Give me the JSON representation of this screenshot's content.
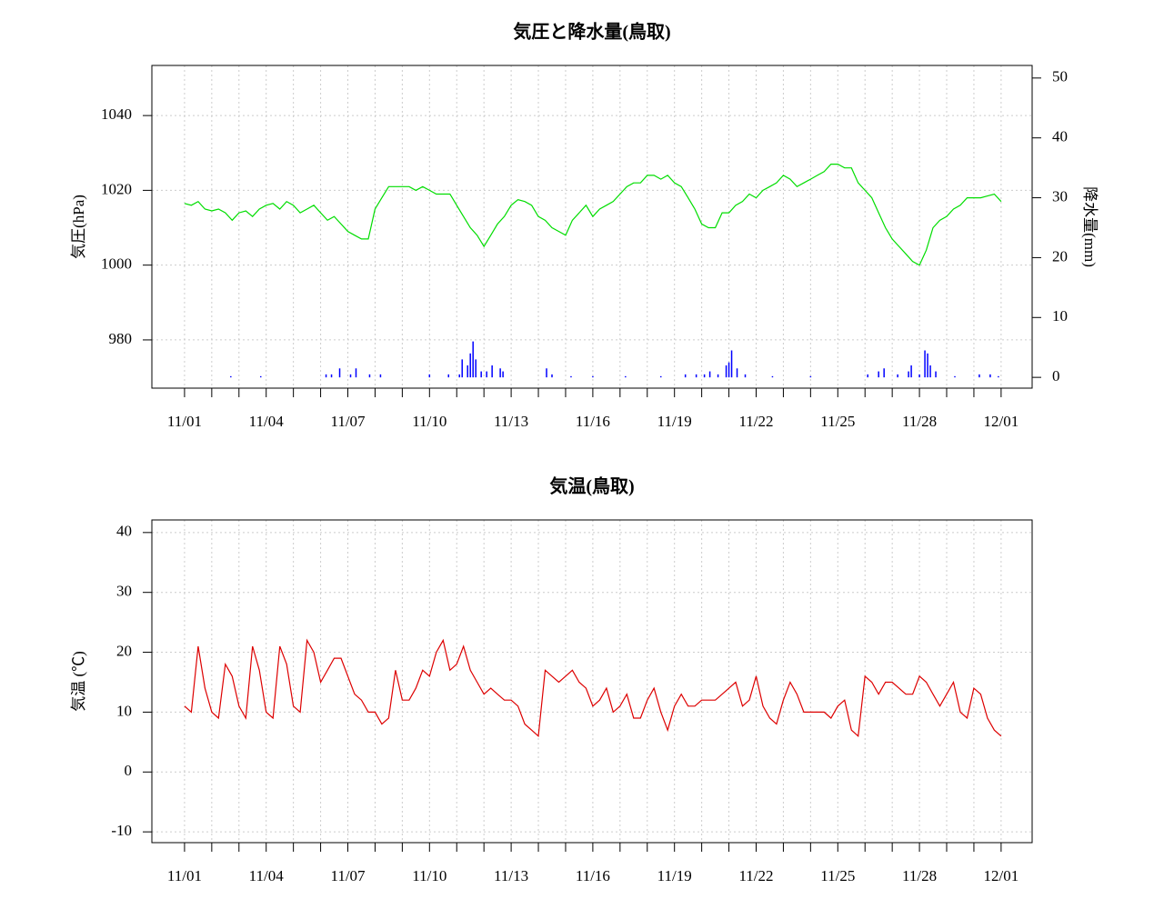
{
  "chart_data": [
    {
      "type": "line",
      "title": "気圧と降水量(鳥取)",
      "ylabel": "気圧(hPa)",
      "y2label": "降水量(mm)",
      "xlim": [
        -1.2,
        31.14
      ],
      "ylim": [
        967.1,
        1053.4
      ],
      "y2lim": [
        -1.8,
        52.1
      ],
      "xticks": [
        {
          "value": 0,
          "label": "11/01"
        },
        {
          "value": 3,
          "label": "11/04"
        },
        {
          "value": 6,
          "label": "11/07"
        },
        {
          "value": 9,
          "label": "11/10"
        },
        {
          "value": 12,
          "label": "11/13"
        },
        {
          "value": 15,
          "label": "11/16"
        },
        {
          "value": 18,
          "label": "11/19"
        },
        {
          "value": 21,
          "label": "11/22"
        },
        {
          "value": 24,
          "label": "11/25"
        },
        {
          "value": 27,
          "label": "11/28"
        },
        {
          "value": 30,
          "label": "12/01"
        }
      ],
      "yticks": [
        980,
        1000,
        1020,
        1040
      ],
      "y2ticks": [
        0,
        10,
        20,
        30,
        40,
        50
      ],
      "grid": true,
      "series": [
        {
          "type": "line",
          "color": "#00dd00",
          "x": [
            0,
            0.25,
            0.5,
            0.75,
            1,
            1.25,
            1.5,
            1.75,
            2,
            2.25,
            2.5,
            2.75,
            3,
            3.25,
            3.5,
            3.75,
            4,
            4.25,
            4.5,
            4.75,
            5,
            5.25,
            5.5,
            5.75,
            6,
            6.25,
            6.5,
            6.75,
            7,
            7.25,
            7.5,
            7.75,
            8,
            8.25,
            8.5,
            8.75,
            9,
            9.25,
            9.5,
            9.75,
            10,
            10.25,
            10.5,
            10.75,
            11,
            11.25,
            11.5,
            11.75,
            12,
            12.25,
            12.5,
            12.75,
            13,
            13.25,
            13.5,
            13.75,
            14,
            14.25,
            14.5,
            14.75,
            15,
            15.25,
            15.5,
            15.75,
            16,
            16.25,
            16.5,
            16.75,
            17,
            17.25,
            17.5,
            17.75,
            18,
            18.25,
            18.5,
            18.75,
            19,
            19.25,
            19.5,
            19.75,
            20,
            20.25,
            20.5,
            20.75,
            21,
            21.25,
            21.5,
            21.75,
            22,
            22.25,
            22.5,
            22.75,
            23,
            23.25,
            23.5,
            23.75,
            24,
            24.25,
            24.5,
            24.75,
            25,
            25.25,
            25.5,
            25.75,
            26,
            26.25,
            26.5,
            26.75,
            27,
            27.25,
            27.5,
            27.75,
            28,
            28.25,
            28.5,
            28.75,
            29,
            29.25,
            29.5,
            29.75,
            30
          ],
          "values": [
            1016.5,
            1016,
            1017,
            1015,
            1014.5,
            1015,
            1014,
            1012,
            1014,
            1014.5,
            1013,
            1015,
            1016,
            1016.5,
            1015,
            1017,
            1016,
            1014,
            1015,
            1016,
            1014,
            1012,
            1013,
            1011,
            1009,
            1008,
            1007,
            1007,
            1015,
            1018,
            1021,
            1021,
            1021,
            1021,
            1020,
            1021,
            1020,
            1019,
            1019,
            1019,
            1016,
            1013,
            1010,
            1008,
            1005,
            1008,
            1011,
            1013,
            1016,
            1017.5,
            1017,
            1016,
            1013,
            1012,
            1010,
            1009,
            1008,
            1012,
            1014,
            1016,
            1013,
            1015,
            1016,
            1017,
            1019,
            1021,
            1022,
            1022,
            1024,
            1024,
            1023,
            1024,
            1022,
            1021,
            1018,
            1015,
            1011,
            1010,
            1010,
            1014,
            1014,
            1016,
            1017,
            1019,
            1018,
            1020,
            1021,
            1022,
            1024,
            1023,
            1021,
            1022,
            1023,
            1024,
            1025,
            1027,
            1027,
            1026,
            1026,
            1022,
            1020,
            1018,
            1014,
            1010,
            1007,
            1005,
            1003,
            1001,
            1000,
            1004,
            1010,
            1012,
            1013,
            1015,
            1016,
            1018,
            1018,
            1018,
            1018.5,
            1019,
            1017
          ]
        },
        {
          "type": "bar",
          "axis": "y2",
          "color": "#0000ff",
          "x": [
            1.7,
            2.8,
            5.2,
            5.4,
            5.7,
            6.1,
            6.3,
            6.8,
            7.2,
            9.0,
            9.7,
            10.1,
            10.2,
            10.4,
            10.5,
            10.6,
            10.7,
            10.9,
            11.1,
            11.3,
            11.6,
            11.7,
            13.3,
            13.5,
            14.2,
            15.0,
            16.2,
            17.5,
            18.4,
            18.8,
            19.1,
            19.3,
            19.6,
            19.9,
            20.0,
            20.1,
            20.3,
            20.6,
            21.6,
            23.0,
            25.1,
            25.5,
            25.7,
            26.2,
            26.6,
            26.7,
            27.0,
            27.2,
            27.3,
            27.4,
            27.6,
            28.3,
            29.2,
            29.6,
            29.9
          ],
          "values": [
            0.2,
            0.2,
            0.5,
            0.5,
            1.5,
            0.5,
            1.5,
            0.5,
            0.5,
            0.5,
            0.5,
            0.5,
            3,
            2,
            4,
            6,
            3,
            1,
            1,
            2,
            1.5,
            1,
            1.5,
            0.5,
            0.2,
            0.2,
            0.2,
            0.2,
            0.5,
            0.5,
            0.5,
            1,
            0.5,
            2,
            2.5,
            4.5,
            1.5,
            0.5,
            0.2,
            0.2,
            0.5,
            1,
            1.5,
            0.5,
            1,
            2,
            0.5,
            4.5,
            4,
            2,
            1,
            0.2,
            0.5,
            0.5,
            0.2
          ]
        }
      ]
    },
    {
      "type": "line",
      "title": "気温(鳥取)",
      "ylabel": "気温 (℃)",
      "xlim": [
        -1.2,
        31.14
      ],
      "ylim": [
        -11.8,
        42.1
      ],
      "xticks": [
        {
          "value": 0,
          "label": "11/01"
        },
        {
          "value": 3,
          "label": "11/04"
        },
        {
          "value": 6,
          "label": "11/07"
        },
        {
          "value": 9,
          "label": "11/10"
        },
        {
          "value": 12,
          "label": "11/13"
        },
        {
          "value": 15,
          "label": "11/16"
        },
        {
          "value": 18,
          "label": "11/19"
        },
        {
          "value": 21,
          "label": "11/22"
        },
        {
          "value": 24,
          "label": "11/25"
        },
        {
          "value": 27,
          "label": "11/28"
        },
        {
          "value": 30,
          "label": "12/01"
        }
      ],
      "yticks": [
        -10,
        0,
        10,
        20,
        30,
        40
      ],
      "grid": true,
      "series": [
        {
          "type": "line",
          "color": "#dd0000",
          "x": [
            0,
            0.25,
            0.5,
            0.75,
            1,
            1.25,
            1.5,
            1.75,
            2,
            2.25,
            2.5,
            2.75,
            3,
            3.25,
            3.5,
            3.75,
            4,
            4.25,
            4.5,
            4.75,
            5,
            5.25,
            5.5,
            5.75,
            6,
            6.25,
            6.5,
            6.75,
            7,
            7.25,
            7.5,
            7.75,
            8,
            8.25,
            8.5,
            8.75,
            9,
            9.25,
            9.5,
            9.75,
            10,
            10.25,
            10.5,
            10.75,
            11,
            11.25,
            11.5,
            11.75,
            12,
            12.25,
            12.5,
            12.75,
            13,
            13.25,
            13.5,
            13.75,
            14,
            14.25,
            14.5,
            14.75,
            15,
            15.25,
            15.5,
            15.75,
            16,
            16.25,
            16.5,
            16.75,
            17,
            17.25,
            17.5,
            17.75,
            18,
            18.25,
            18.5,
            18.75,
            19,
            19.25,
            19.5,
            19.75,
            20,
            20.25,
            20.5,
            20.75,
            21,
            21.25,
            21.5,
            21.75,
            22,
            22.25,
            22.5,
            22.75,
            23,
            23.25,
            23.5,
            23.75,
            24,
            24.25,
            24.5,
            24.75,
            25,
            25.25,
            25.5,
            25.75,
            26,
            26.25,
            26.5,
            26.75,
            27,
            27.25,
            27.5,
            27.75,
            28,
            28.25,
            28.5,
            28.75,
            29,
            29.25,
            29.5,
            29.75,
            30
          ],
          "values": [
            11,
            10,
            21,
            14,
            10,
            9,
            18,
            16,
            11,
            9,
            21,
            17,
            10,
            9,
            21,
            18,
            11,
            10,
            22,
            20,
            15,
            17,
            19,
            19,
            16,
            13,
            12,
            10,
            10,
            8,
            9,
            17,
            12,
            12,
            14,
            17,
            16,
            20,
            22,
            17,
            18,
            21,
            17,
            15,
            13,
            14,
            13,
            12,
            12,
            11,
            8,
            7,
            6,
            17,
            16,
            15,
            16,
            17,
            15,
            14,
            11,
            12,
            14,
            10,
            11,
            13,
            9,
            9,
            12,
            14,
            10,
            7,
            11,
            13,
            11,
            11,
            12,
            12,
            12,
            13,
            14,
            15,
            11,
            12,
            16,
            11,
            9,
            8,
            12,
            15,
            13,
            10,
            10,
            10,
            10,
            9,
            11,
            12,
            7,
            6,
            16,
            15,
            13,
            15,
            15,
            14,
            13,
            13,
            16,
            15,
            13,
            11,
            13,
            15,
            10,
            9,
            14,
            13,
            9,
            7,
            6
          ]
        }
      ]
    }
  ]
}
